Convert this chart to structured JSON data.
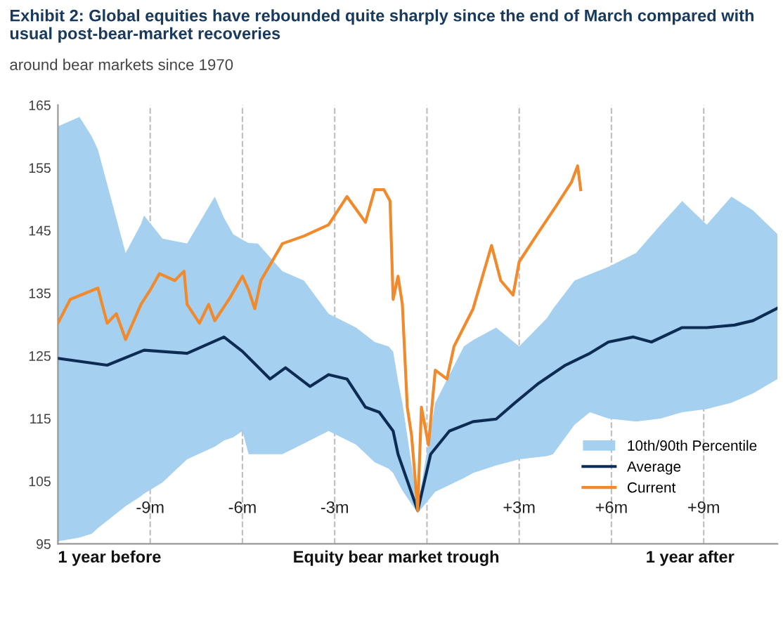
{
  "chart_data": {
    "type": "line",
    "title": "Exhibit 2: Global equities have rebounded quite sharply since the end of March compared with usual post-bear-market recoveries",
    "subtitle": "around bear markets since 1970",
    "xlim": [
      -12,
      11.4
    ],
    "xticks": [
      {
        "value": -9,
        "label": "-9m"
      },
      {
        "value": -6,
        "label": "-6m"
      },
      {
        "value": -3,
        "label": "-3m"
      },
      {
        "value": 0,
        "label": null
      },
      {
        "value": 3,
        "label": "+3m"
      },
      {
        "value": 6,
        "label": "+6m"
      },
      {
        "value": 9,
        "label": "+9m"
      }
    ],
    "annotations": [
      "1 year before",
      "Equity bear market trough",
      "1 year after"
    ],
    "ylim": [
      95,
      165
    ],
    "yticks": [
      95,
      105,
      115,
      125,
      135,
      145,
      155,
      165
    ],
    "grid": "x",
    "legend": "bottom right",
    "line_style": "solid",
    "series": [
      {
        "name": "10th/90th Percentile",
        "type": "area",
        "color": "#a6d0f0",
        "x": [
          -12,
          -11.3,
          -10.9,
          -10.7,
          -9.8,
          -9.3,
          -9.2,
          -8.6,
          -7.8,
          -6.9,
          -6.6,
          -6.3,
          -6.0,
          -5.8,
          -5.5,
          -4.7,
          -4.0,
          -3.2,
          -2.3,
          -1.7,
          -1.25,
          -1.1,
          -0.94,
          -0.8,
          -0.3,
          0.27,
          1.2,
          1.5,
          2.25,
          3.0,
          3.9,
          4.1,
          4.8,
          5.3,
          5.9,
          6.8,
          7.6,
          8.3,
          9.1,
          9.9,
          10.6,
          11.4
        ],
        "values": [
          null,
          null,
          null,
          null,
          null,
          null,
          null,
          null,
          null,
          null,
          null,
          null,
          null,
          null,
          null,
          null,
          null,
          null,
          null,
          null,
          null,
          null,
          null,
          null,
          null,
          null,
          null,
          null,
          null,
          null,
          null,
          null,
          null,
          null,
          null,
          null,
          null,
          null,
          null,
          null,
          null,
          null
        ],
        "upper": [
          161.6,
          163.1,
          160.0,
          157.9,
          141.4,
          146.0,
          147.4,
          143.7,
          142.9,
          150.4,
          147.0,
          144.4,
          143.5,
          143.0,
          142.9,
          138.5,
          137.0,
          131.7,
          129.5,
          127.2,
          126.5,
          125.7,
          121.0,
          117.5,
          101.0,
          117.5,
          126.5,
          127.5,
          129.5,
          126.5,
          131.0,
          132.5,
          137.0,
          138.0,
          139.2,
          141.4,
          145.9,
          149.7,
          145.9,
          150.4,
          148.2,
          144.4
        ],
        "lower": [
          95.4,
          96.0,
          96.6,
          97.5,
          101.0,
          102.6,
          103.0,
          104.8,
          108.5,
          110.5,
          111.5,
          112.0,
          113.0,
          109.3,
          109.3,
          109.3,
          111.0,
          113.0,
          110.8,
          108.0,
          107.0,
          106.3,
          104.8,
          103.5,
          99.9,
          103.3,
          105.5,
          106.3,
          107.5,
          108.5,
          109.0,
          109.3,
          114.0,
          116.0,
          115.0,
          114.5,
          115.0,
          116.0,
          116.5,
          117.5,
          119.0,
          121.3
        ]
      },
      {
        "name": "Average",
        "color": "#0d2c54",
        "x": [
          -12,
          -10.4,
          -9.2,
          -7.8,
          -6.6,
          -6.0,
          -5.1,
          -4.6,
          -3.8,
          -3.2,
          -2.6,
          -2.0,
          -1.55,
          -1.1,
          -0.94,
          -0.3,
          0.12,
          0.73,
          1.5,
          2.25,
          2.86,
          3.6,
          4.5,
          5.3,
          5.9,
          6.7,
          7.3,
          8.3,
          9.1,
          10.0,
          10.6,
          11.4
        ],
        "values": [
          124.6,
          123.5,
          125.9,
          125.4,
          128.0,
          125.7,
          121.3,
          123.1,
          120.1,
          122.0,
          121.3,
          116.8,
          116.0,
          113.0,
          109.3,
          100.3,
          109.3,
          113.0,
          114.5,
          114.9,
          117.5,
          120.5,
          123.5,
          125.4,
          127.2,
          128.0,
          127.2,
          129.5,
          129.5,
          129.9,
          130.6,
          132.6
        ]
      },
      {
        "name": "Current",
        "color": "#f08a2c",
        "x": [
          -12,
          -11.6,
          -10.7,
          -10.4,
          -10.1,
          -9.8,
          -9.3,
          -9.0,
          -8.7,
          -8.2,
          -7.9,
          -7.8,
          -7.4,
          -7.1,
          -6.9,
          -6.4,
          -6.0,
          -5.8,
          -5.6,
          -5.4,
          -4.7,
          -4.0,
          -3.2,
          -2.6,
          -2.0,
          -1.7,
          -1.4,
          -1.2,
          -1.1,
          -0.94,
          -0.8,
          -0.64,
          -0.5,
          -0.3,
          -0.18,
          0.05,
          0.27,
          0.65,
          0.88,
          1.5,
          2.1,
          2.4,
          2.8,
          3.0,
          3.6,
          4.2,
          4.7,
          4.9,
          5.0
        ],
        "values": [
          130.2,
          134.0,
          135.8,
          130.2,
          131.7,
          127.6,
          133.2,
          135.5,
          138.1,
          137.0,
          138.5,
          133.2,
          130.2,
          133.2,
          130.6,
          134.3,
          137.7,
          135.5,
          132.5,
          137.0,
          142.9,
          144.1,
          145.9,
          150.4,
          146.3,
          151.5,
          151.5,
          149.7,
          134.0,
          137.7,
          133.2,
          116.8,
          112.3,
          100.3,
          116.8,
          110.8,
          122.7,
          121.3,
          126.5,
          132.5,
          142.6,
          137.0,
          134.7,
          140.0,
          144.5,
          148.9,
          152.7,
          155.3,
          151.5
        ]
      }
    ]
  }
}
